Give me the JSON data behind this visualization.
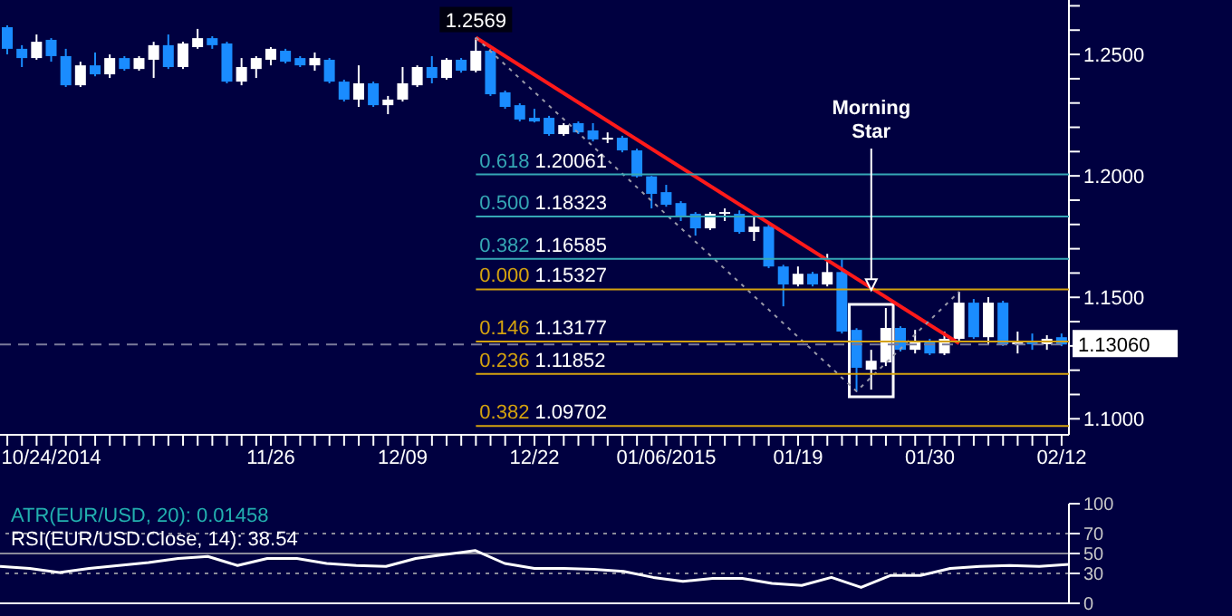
{
  "chart_data": [
    {
      "type": "candlestick",
      "categories": [
        null,
        null,
        null,
        "10/24/2014",
        null,
        null,
        null,
        null,
        null,
        null,
        null,
        null,
        null,
        null,
        null,
        null,
        null,
        null,
        "11/26",
        null,
        null,
        null,
        null,
        null,
        null,
        null,
        null,
        "12/09",
        null,
        null,
        null,
        null,
        null,
        null,
        null,
        null,
        "12/22",
        null,
        null,
        null,
        null,
        null,
        null,
        null,
        null,
        "01/06/2015",
        null,
        null,
        null,
        null,
        null,
        null,
        null,
        null,
        "01/19",
        null,
        null,
        null,
        null,
        null,
        null,
        null,
        null,
        "01/30",
        null,
        null,
        null,
        null,
        null,
        null,
        null,
        null,
        "02/12"
      ],
      "ohlc": [
        [
          1.2612,
          1.262,
          1.25,
          1.2523
        ],
        [
          1.2523,
          1.2538,
          1.2448,
          1.2485
        ],
        [
          1.2485,
          1.2582,
          1.2478,
          1.2552
        ],
        [
          1.256,
          1.2567,
          1.247,
          1.2493
        ],
        [
          1.2493,
          1.2523,
          1.2366,
          1.2373
        ],
        [
          1.2373,
          1.247,
          1.2366,
          1.2455
        ],
        [
          1.2455,
          1.2508,
          1.241,
          1.2418
        ],
        [
          1.2418,
          1.25,
          1.2403,
          1.2485
        ],
        [
          1.2485,
          1.2493,
          1.2433,
          1.244
        ],
        [
          1.244,
          1.2493,
          1.2433,
          1.2485
        ],
        [
          1.2478,
          1.2552,
          1.2403,
          1.2538
        ],
        [
          1.2538,
          1.2582,
          1.244,
          1.2448
        ],
        [
          1.2448,
          1.2552,
          1.244,
          1.2545
        ],
        [
          1.253,
          1.2605,
          1.2523,
          1.2567
        ],
        [
          1.2567,
          1.2575,
          1.2523,
          1.2538
        ],
        [
          1.2545,
          1.2552,
          1.2381,
          1.2388
        ],
        [
          1.2388,
          1.2485,
          1.2373,
          1.2448
        ],
        [
          1.244,
          1.2493,
          1.2403,
          1.2485
        ],
        [
          1.2478,
          1.253,
          1.2455,
          1.2523
        ],
        [
          1.2515,
          1.2523,
          1.2463,
          1.247
        ],
        [
          1.2485,
          1.2493,
          1.2448,
          1.2455
        ],
        [
          1.2455,
          1.2508,
          1.2433,
          1.2485
        ],
        [
          1.2478,
          1.2485,
          1.2381,
          1.2388
        ],
        [
          1.2388,
          1.2396,
          1.2306,
          1.2314
        ],
        [
          1.2314,
          1.2455,
          1.2284,
          1.2381
        ],
        [
          1.2381,
          1.2388,
          1.2284,
          1.2291
        ],
        [
          1.2291,
          1.2329,
          1.2254,
          1.2314
        ],
        [
          1.2314,
          1.2448,
          1.2306,
          1.2381
        ],
        [
          1.2373,
          1.2455,
          1.2366,
          1.2448
        ],
        [
          1.2448,
          1.2493,
          1.2381,
          1.2403
        ],
        [
          1.2403,
          1.2485,
          1.2396,
          1.2478
        ],
        [
          1.2478,
          1.2485,
          1.2425,
          1.2433
        ],
        [
          1.2433,
          1.2569,
          1.2426,
          1.2515
        ],
        [
          1.2515,
          1.2523,
          1.2329,
          1.2336
        ],
        [
          1.2344,
          1.2351,
          1.2276,
          1.2284
        ],
        [
          1.2291,
          1.2299,
          1.2224,
          1.2232
        ],
        [
          1.2239,
          1.2276,
          1.222,
          1.2224
        ],
        [
          1.2239,
          1.2247,
          1.2165,
          1.2172
        ],
        [
          1.2172,
          1.2217,
          1.2165,
          1.2209
        ],
        [
          1.2217,
          1.2224,
          1.2172,
          1.2179
        ],
        [
          1.2187,
          1.2217,
          1.2142,
          1.215
        ],
        [
          1.215,
          1.2179,
          1.2135,
          1.2157
        ],
        [
          1.2157,
          1.2165,
          1.2097,
          1.2105
        ],
        [
          1.2105,
          1.2112,
          1.1993,
          1.1998
        ],
        [
          1.1998,
          1.2,
          1.1866,
          1.1926
        ],
        [
          1.1933,
          1.1963,
          1.1873,
          1.1881
        ],
        [
          1.1888,
          1.1896,
          1.1814,
          1.1829
        ],
        [
          1.1844,
          1.1851,
          1.1754,
          1.1784
        ],
        [
          1.1784,
          1.1851,
          1.1777,
          1.1844
        ],
        [
          1.1844,
          1.1866,
          1.1814,
          1.1851
        ],
        [
          1.1844,
          1.1858,
          1.1762,
          1.1769
        ],
        [
          1.1769,
          1.1829,
          1.1732,
          1.1791
        ],
        [
          1.1791,
          1.1799,
          1.162,
          1.1627
        ],
        [
          1.1627,
          1.1634,
          1.1463,
          1.1553
        ],
        [
          1.1553,
          1.1627,
          1.1545,
          1.1597
        ],
        [
          1.1597,
          1.1605,
          1.1545,
          1.1553
        ],
        [
          1.1553,
          1.1679,
          1.1545,
          1.1604
        ],
        [
          1.1604,
          1.1657,
          1.1351,
          1.1359
        ],
        [
          1.1366,
          1.1373,
          1.1113,
          1.121
        ],
        [
          1.1202,
          1.1284,
          1.112,
          1.1239
        ],
        [
          1.1232,
          1.1456,
          1.1217,
          1.1374
        ],
        [
          1.1374,
          1.1381,
          1.1277,
          1.1284
        ],
        [
          1.1284,
          1.1366,
          1.1269,
          1.1321
        ],
        [
          1.1321,
          1.1329,
          1.1262,
          1.1269
        ],
        [
          1.1269,
          1.1359,
          1.1262,
          1.1329
        ],
        [
          1.1329,
          1.1523,
          1.1322,
          1.1478
        ],
        [
          1.1478,
          1.1493,
          1.1329,
          1.1336
        ],
        [
          1.1336,
          1.1501,
          1.1307,
          1.1478
        ],
        [
          1.1478,
          1.1486,
          1.13,
          1.1307
        ],
        [
          1.1307,
          1.1359,
          1.1269,
          1.1314
        ],
        [
          1.1314,
          1.1351,
          1.1284,
          1.1307
        ],
        [
          1.1307,
          1.1344,
          1.1284,
          1.1329
        ],
        [
          1.1336,
          1.1351,
          1.1299,
          1.1306
        ]
      ],
      "colors": [
        "#1a8cff",
        "#1a8cff",
        "#ffffff",
        "#1a8cff",
        "#1a8cff",
        "#ffffff",
        "#1a8cff",
        "#ffffff",
        "#1a8cff",
        "#ffffff",
        "#ffffff",
        "#1a8cff",
        "#ffffff",
        "#ffffff",
        "#1a8cff",
        "#1a8cff",
        "#ffffff",
        "#ffffff",
        "#ffffff",
        "#1a8cff",
        "#1a8cff",
        "#ffffff",
        "#1a8cff",
        "#1a8cff",
        "#ffffff",
        "#1a8cff",
        "#ffffff",
        "#ffffff",
        "#ffffff",
        "#1a8cff",
        "#ffffff",
        "#1a8cff",
        "#ffffff",
        "#1a8cff",
        "#1a8cff",
        "#1a8cff",
        "#1a8cff",
        "#1a8cff",
        "#ffffff",
        "#1a8cff",
        "#1a8cff",
        "#ffffff",
        "#1a8cff",
        "#1a8cff",
        "#1a8cff",
        "#1a8cff",
        "#1a8cff",
        "#1a8cff",
        "#ffffff",
        "#ffffff",
        "#1a8cff",
        "#ffffff",
        "#1a8cff",
        "#1a8cff",
        "#ffffff",
        "#1a8cff",
        "#ffffff",
        "#1a8cff",
        "#1a8cff",
        "#ffffff",
        "#ffffff",
        "#1a8cff",
        "#ffffff",
        "#1a8cff",
        "#ffffff",
        "#ffffff",
        "#1a8cff",
        "#ffffff",
        "#1a8cff",
        "#ffffff",
        "#1a8cff",
        "#ffffff",
        "#1a8cff"
      ],
      "series": [
        {
          "type": "line",
          "color": "#ff1a1a",
          "line_style": "solid",
          "values": [
            null,
            null,
            null,
            null,
            null,
            null,
            null,
            null,
            null,
            null,
            null,
            null,
            null,
            null,
            null,
            null,
            null,
            null,
            null,
            null,
            null,
            null,
            null,
            null,
            null,
            null,
            null,
            null,
            null,
            null,
            null,
            null,
            1.2569,
            null,
            null,
            null,
            null,
            null,
            null,
            null,
            null,
            null,
            null,
            null,
            null,
            null,
            null,
            null,
            null,
            null,
            null,
            null,
            null,
            null,
            null,
            null,
            null,
            null,
            null,
            null,
            null,
            null,
            null,
            null,
            null,
            1.131,
            null,
            null,
            null,
            null,
            null,
            null,
            null
          ]
        },
        {
          "type": "line",
          "color": "#9a9aaa",
          "line_style": "dotted",
          "values": [
            null,
            null,
            null,
            null,
            null,
            null,
            null,
            null,
            null,
            null,
            null,
            null,
            null,
            null,
            null,
            null,
            null,
            null,
            null,
            null,
            null,
            null,
            null,
            null,
            null,
            null,
            null,
            null,
            null,
            null,
            null,
            null,
            1.2569,
            null,
            null,
            null,
            null,
            null,
            null,
            null,
            null,
            null,
            null,
            null,
            null,
            null,
            null,
            null,
            null,
            null,
            null,
            null,
            null,
            null,
            null,
            null,
            null,
            null,
            1.1113,
            null,
            null,
            null,
            null,
            null,
            null,
            1.1523,
            null,
            null,
            null,
            null,
            null,
            null,
            null
          ]
        }
      ],
      "ylim": [
        1.0934,
        1.2724
      ],
      "yticks": [
        {
          "value": 1.1,
          "label": "1.1000"
        },
        {
          "value": 1.11,
          "label": null
        },
        {
          "value": 1.12,
          "label": null
        },
        {
          "value": 1.13,
          "label": null
        },
        {
          "value": 1.14,
          "label": null
        },
        {
          "value": 1.15,
          "label": "1.1500"
        },
        {
          "value": 1.16,
          "label": null
        },
        {
          "value": 1.17,
          "label": null
        },
        {
          "value": 1.18,
          "label": null
        },
        {
          "value": 1.19,
          "label": null
        },
        {
          "value": 1.2,
          "label": "1.2000"
        },
        {
          "value": 1.21,
          "label": null
        },
        {
          "value": 1.22,
          "label": null
        },
        {
          "value": 1.23,
          "label": null
        },
        {
          "value": 1.24,
          "label": null
        },
        {
          "value": 1.25,
          "label": "1.2500"
        },
        {
          "value": 1.26,
          "label": null
        },
        {
          "value": 1.27,
          "label": null
        }
      ],
      "ref_lines": [
        {
          "axis": "y",
          "value": 1.20061,
          "label": "0.618 1.20061",
          "color": "#35a7b5",
          "line_style": "solid"
        },
        {
          "axis": "y",
          "value": 1.18323,
          "label": "0.500 1.18323",
          "color": "#35a7b5",
          "line_style": "solid"
        },
        {
          "axis": "y",
          "value": 1.16585,
          "label": "0.382 1.16585",
          "color": "#35a7b5",
          "line_style": "solid"
        },
        {
          "axis": "y",
          "value": 1.15327,
          "label": "0.000 1.15327",
          "color": "#d4a20f",
          "line_style": "solid"
        },
        {
          "axis": "y",
          "value": 1.13177,
          "label": "0.146 1.13177",
          "color": "#d4a20f",
          "line_style": "solid"
        },
        {
          "axis": "y",
          "value": 1.11852,
          "label": "0.236 1.11852",
          "color": "#d4a20f",
          "line_style": "solid"
        },
        {
          "axis": "y",
          "value": 1.09702,
          "label": "0.382 1.09702",
          "color": "#d4a20f",
          "line_style": "solid"
        },
        {
          "axis": "y",
          "value": 1.1306,
          "label": "1.13060",
          "color": "#7a7a9a",
          "line_style": "dashed"
        }
      ],
      "annotations": [
        {
          "text": "Morning Star",
          "y": 1.153
        },
        {
          "text": "1.2569",
          "y": 1.2569
        }
      ]
    },
    {
      "type": "line",
      "title": "ATR(EUR/USD, 20): 0.01458",
      "subtitle": "RSI(EUR/USD.Close, 14): 38.54",
      "categories": [
        null,
        null,
        null,
        null,
        null,
        null,
        null,
        null,
        null,
        null,
        null,
        null,
        null,
        null,
        null,
        null,
        null,
        null,
        null,
        null,
        null,
        null,
        null,
        null,
        null,
        null,
        null,
        null,
        null,
        null,
        null,
        null,
        null,
        null,
        null,
        null,
        null
      ],
      "series": [
        {
          "color": "#ffffff",
          "values": [
            37,
            35,
            31,
            35,
            38,
            41,
            45,
            47,
            38,
            45,
            45,
            40,
            38,
            37,
            45,
            49,
            53,
            40,
            35,
            35,
            34,
            32,
            26,
            22,
            25,
            25,
            20,
            18,
            26,
            16,
            28,
            28,
            35,
            37,
            38,
            37,
            39
          ]
        }
      ],
      "ylim": [
        0,
        100
      ],
      "yticks": [
        0,
        30,
        50,
        70,
        100
      ],
      "ref_lines": [
        {
          "axis": "y",
          "value": 70,
          "color": "#8a8a9a",
          "line_style": "dotted"
        },
        {
          "axis": "y",
          "value": 50,
          "color": "#8a8a9a",
          "line_style": "solid"
        },
        {
          "axis": "y",
          "value": 30,
          "color": "#8a8a9a",
          "line_style": "dotted"
        }
      ],
      "tick_labels": "y"
    }
  ]
}
